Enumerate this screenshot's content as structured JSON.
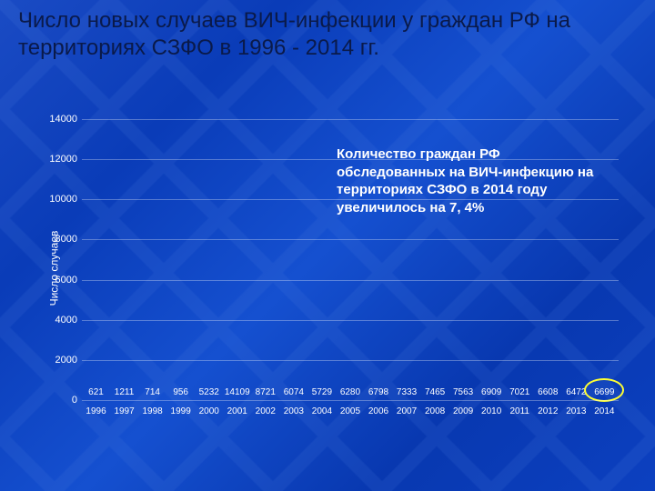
{
  "title": "Число новых случаев ВИЧ-инфекции у граждан РФ на территориях СЗФО в 1996 - 2014 гг.",
  "annotation": "Количество граждан РФ обследованных на ВИЧ-инфекцию на территориях СЗФО в 2014 году увеличилось на 7, 4%",
  "chart": {
    "type": "bar",
    "categories": [
      "1996",
      "1997",
      "1998",
      "1999",
      "2000",
      "2001",
      "2002",
      "2003",
      "2004",
      "2005",
      "2006",
      "2007",
      "2008",
      "2009",
      "2010",
      "2011",
      "2012",
      "2013",
      "2014"
    ],
    "values": [
      621,
      1211,
      714,
      956,
      5232,
      14109,
      8721,
      6074,
      5729,
      6280,
      6798,
      7333,
      7465,
      7563,
      6909,
      7021,
      6608,
      6472,
      6699
    ],
    "bar_color": "#e80c0c",
    "text_color": "#ffffff",
    "title_color": "#0a1a4a",
    "title_fontsize": 24,
    "label_fontsize": 10,
    "tick_fontsize": 11,
    "ylabel": "Число случаев",
    "ylabel_fontsize": 12,
    "ylim": [
      0,
      14500
    ],
    "yticks": [
      0,
      2000,
      4000,
      6000,
      8000,
      10000,
      12000,
      14000
    ],
    "grid_color": "rgba(255,255,255,0.3)",
    "background_gradient": [
      "#1a4bc4",
      "#0a3cb8",
      "#1550d0",
      "#0838b0",
      "#0c40c0"
    ],
    "highlight_color": "#ffff33",
    "highlight_index": 18,
    "bar_width": 0.62
  }
}
